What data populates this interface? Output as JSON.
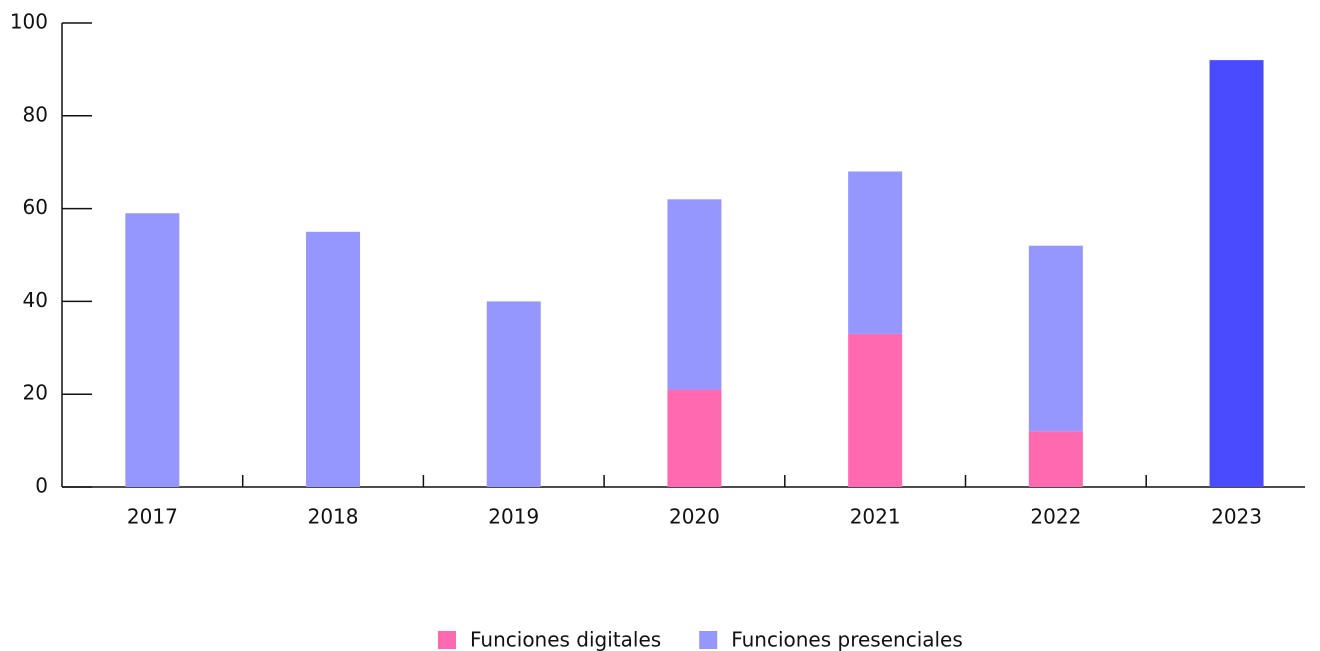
{
  "chart_data": {
    "type": "stacked_bar",
    "categories": [
      "2017",
      "2018",
      "2019",
      "2020",
      "2021",
      "2022",
      "2023"
    ],
    "series": [
      {
        "name": "Funciones digitales",
        "color": "#ff69b0",
        "values": [
          0,
          0,
          0,
          21,
          33,
          12,
          0
        ]
      },
      {
        "name": "Funciones presenciales",
        "color": "#9696ff",
        "colors": [
          "#9696ff",
          "#9696ff",
          "#9696ff",
          "#9696ff",
          "#9696ff",
          "#9696ff",
          "#4a4aff"
        ],
        "values": [
          59,
          55,
          40,
          41,
          35,
          40,
          92
        ]
      }
    ],
    "ylim": [
      0,
      100
    ],
    "yticks": [
      0,
      20,
      40,
      60,
      80,
      100
    ],
    "legend": "bottom"
  }
}
